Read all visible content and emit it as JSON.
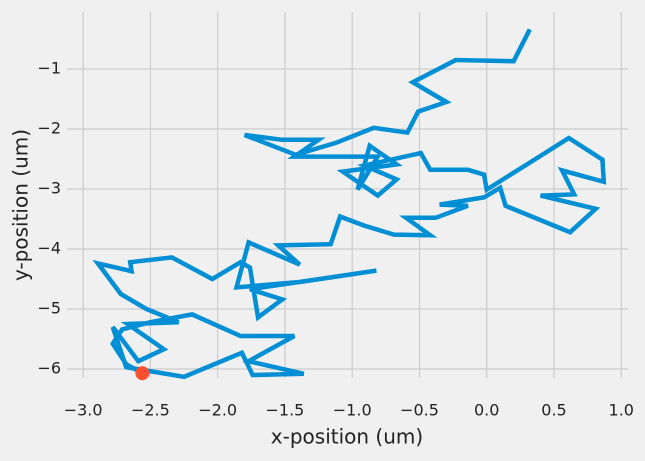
{
  "chart_data": {
    "type": "line",
    "xlabel": "x-position (um)",
    "ylabel": "y-position (um)",
    "xlim": [
      -3.12,
      1.05
    ],
    "ylim": [
      -6.15,
      -0.05
    ],
    "grid": true,
    "xticks": [
      {
        "value": -3.0,
        "label": "−3.0"
      },
      {
        "value": -2.5,
        "label": "−2.5"
      },
      {
        "value": -2.0,
        "label": "−2.0"
      },
      {
        "value": -1.5,
        "label": "−1.5"
      },
      {
        "value": -1.0,
        "label": "−1.0"
      },
      {
        "value": -0.5,
        "label": "−0.5"
      },
      {
        "value": 0.0,
        "label": "0.0"
      },
      {
        "value": 0.5,
        "label": "0.5"
      },
      {
        "value": 1.0,
        "label": "1.0"
      }
    ],
    "yticks": [
      {
        "value": -1,
        "label": "−1"
      },
      {
        "value": -2,
        "label": "−2"
      },
      {
        "value": -3,
        "label": "−3"
      },
      {
        "value": -4,
        "label": "−4"
      },
      {
        "value": -5,
        "label": "−5"
      },
      {
        "value": -6,
        "label": "−6"
      }
    ],
    "series": [
      {
        "type": "line",
        "color": "#008fd5",
        "x": [
          0.32,
          0.2,
          -0.23,
          -0.55,
          -0.3,
          -0.51,
          -0.59,
          -0.84,
          -1.12,
          -1.42,
          -1.8,
          -1.52,
          -1.25,
          -1.43,
          -0.81,
          -0.96,
          -0.87,
          -0.67,
          -1.07,
          -0.81,
          -0.67,
          -0.91,
          -0.49,
          -0.42,
          -0.14,
          -0.02,
          0.0,
          0.32,
          0.61,
          0.86,
          0.87,
          0.56,
          0.65,
          0.4,
          0.81,
          0.62,
          0.14,
          0.1,
          -0.02,
          -0.35,
          -0.14,
          -0.38,
          -0.6,
          -0.42,
          -0.69,
          -0.91,
          -1.09,
          -1.16,
          -1.55,
          -1.39,
          -1.77,
          -1.86,
          -1.39,
          -0.82,
          -1.76,
          -1.52,
          -1.7,
          -1.76,
          -1.83,
          -2.04,
          -2.34,
          -2.65,
          -2.64,
          -2.89,
          -2.72,
          -2.53,
          -2.29,
          -2.67,
          -2.4,
          -2.59,
          -2.78,
          -2.68,
          -2.25,
          -1.82,
          -1.74,
          -1.36,
          -1.77,
          -1.43,
          -1.83,
          -2.19,
          -2.5,
          -2.71,
          -2.78,
          -2.68,
          -2.56
        ],
        "y": [
          -0.34,
          -0.87,
          -0.85,
          -1.22,
          -1.55,
          -1.71,
          -2.06,
          -1.98,
          -2.23,
          -2.43,
          -2.1,
          -2.18,
          -2.18,
          -2.46,
          -2.46,
          -3.01,
          -2.28,
          -2.59,
          -2.71,
          -3.11,
          -2.84,
          -2.61,
          -2.4,
          -2.68,
          -2.68,
          -2.76,
          -3.01,
          -2.56,
          -2.15,
          -2.51,
          -2.88,
          -2.69,
          -3.09,
          -3.11,
          -3.33,
          -3.72,
          -3.28,
          -2.98,
          -3.14,
          -3.26,
          -3.28,
          -3.48,
          -3.48,
          -3.77,
          -3.76,
          -3.61,
          -3.46,
          -3.92,
          -3.94,
          -4.26,
          -3.89,
          -4.64,
          -4.55,
          -4.36,
          -4.67,
          -4.84,
          -5.14,
          -4.31,
          -4.22,
          -4.5,
          -4.14,
          -4.22,
          -4.37,
          -4.24,
          -4.75,
          -5.0,
          -5.22,
          -5.25,
          -5.67,
          -5.87,
          -5.3,
          -5.97,
          -6.13,
          -5.73,
          -6.1,
          -6.08,
          -5.87,
          -5.45,
          -5.45,
          -5.09,
          -5.22,
          -5.34,
          -5.58,
          -5.92,
          -6.07
        ]
      },
      {
        "type": "scatter",
        "color": "#fc4f30",
        "x": [
          -2.56
        ],
        "y": [
          -6.07
        ]
      }
    ]
  }
}
